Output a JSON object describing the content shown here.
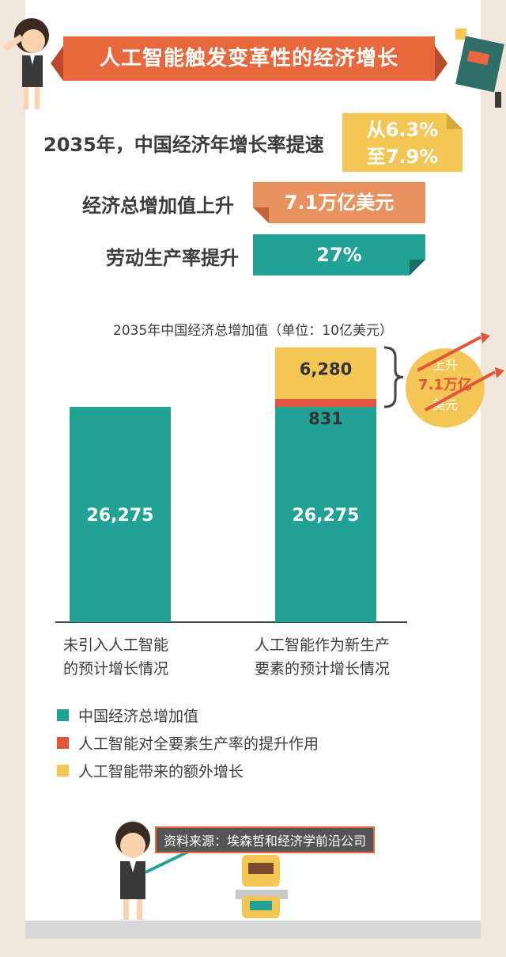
{
  "title": "人工智能触发变革性的经济增长",
  "stats": [
    {
      "label": "2035年，中国经济年增长率提速",
      "value_line1": "从6.3%",
      "value_line2": "至7.9%"
    },
    {
      "label": "经济总增加值上升",
      "value": "7.1万亿美元"
    },
    {
      "label": "劳动生产率提升",
      "value": "27%"
    }
  ],
  "badge": {
    "line1": "上升",
    "line2": "7.1万亿",
    "line3": "美元"
  },
  "source": "资料来源：埃森哲和经济学前沿公司",
  "colors": {
    "teal": "#22a294",
    "red": "#e3553a",
    "yellow": "#f4c655",
    "orange": "#e7683d"
  },
  "chart_data": {
    "type": "bar",
    "stacked": true,
    "title": "2035年中国经济总增加值（单位：10亿美元）",
    "categories": [
      "未引入人工智能的预计增长情况",
      "人工智能作为新生产要素的预计增长情况"
    ],
    "category_lines": [
      [
        "未引入人工智能",
        "的预计增长情况"
      ],
      [
        "人工智能作为新生产",
        "要素的预计增长情况"
      ]
    ],
    "series": [
      {
        "name": "中国经济总增加值",
        "values": [
          26275,
          26275
        ],
        "labels": [
          "26,275",
          "26,275"
        ],
        "color": "#22a294"
      },
      {
        "name": "人工智能对全要素生产率的提升作用",
        "values": [
          0,
          831
        ],
        "labels": [
          "",
          "831"
        ],
        "color": "#e3553a"
      },
      {
        "name": "人工智能带来的额外增长",
        "values": [
          0,
          6280
        ],
        "labels": [
          "",
          "6,280"
        ],
        "color": "#f4c655"
      }
    ],
    "legend": "bottom-left"
  }
}
